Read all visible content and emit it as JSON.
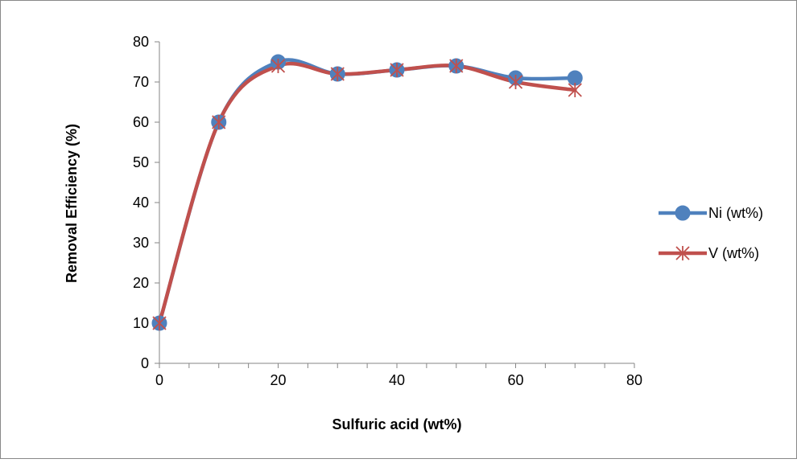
{
  "chart_data": {
    "type": "scatter",
    "xlabel": "Sulfuric acid (wt%)",
    "ylabel": "Removal Efficiency (%)",
    "xlim": [
      0,
      80
    ],
    "ylim": [
      0,
      80
    ],
    "x_ticks": [
      0,
      20,
      40,
      60,
      80
    ],
    "y_ticks": [
      0,
      10,
      20,
      30,
      40,
      50,
      60,
      70,
      80
    ],
    "x_minor_step": 5,
    "grid": false,
    "smoothed_lines": true,
    "legend_position": "right",
    "x": [
      0,
      10,
      20,
      30,
      40,
      50,
      60,
      70
    ],
    "series": [
      {
        "name": "Ni (wt%)",
        "values": [
          10,
          60,
          75,
          72,
          73,
          74,
          71,
          71
        ],
        "color": "#4F81BD",
        "marker": "circle"
      },
      {
        "name": "V (wt%)",
        "values": [
          10,
          60,
          74,
          72,
          73,
          74,
          70,
          68
        ],
        "color": "#C0504D",
        "marker": "star"
      }
    ]
  }
}
